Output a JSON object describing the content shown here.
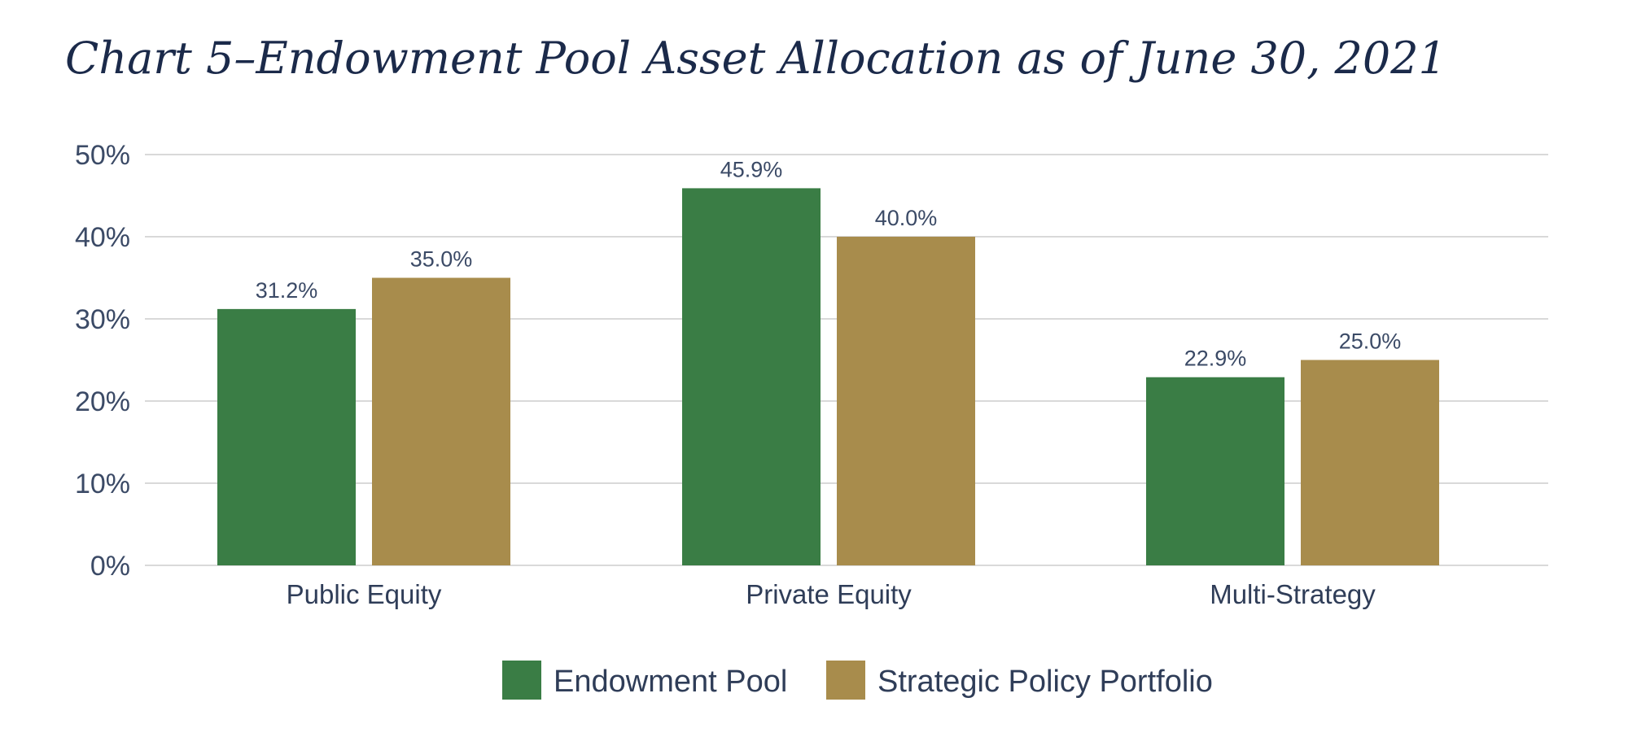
{
  "chart_data": {
    "type": "bar",
    "title": "Chart 5–Endowment Pool Asset Allocation as of June 30, 2021",
    "categories": [
      "Public Equity",
      "Private Equity",
      "Multi-Strategy"
    ],
    "series": [
      {
        "name": "Endowment Pool",
        "values": [
          31.2,
          45.9,
          22.9
        ],
        "labels": [
          "31.2%",
          "45.9%",
          "22.9%"
        ],
        "color": "#3a7d45"
      },
      {
        "name": "Strategic Policy Portfolio",
        "values": [
          35.0,
          40.0,
          25.0
        ],
        "labels": [
          "35.0%",
          "40.0%",
          "25.0%"
        ],
        "color": "#a88c4c"
      }
    ],
    "ylim": [
      0,
      50
    ],
    "yticks": [
      "0%",
      "10%",
      "20%",
      "30%",
      "40%",
      "50%"
    ],
    "grid": true,
    "legend_position": "bottom-center",
    "gridline_color": "#d9d9d9"
  }
}
